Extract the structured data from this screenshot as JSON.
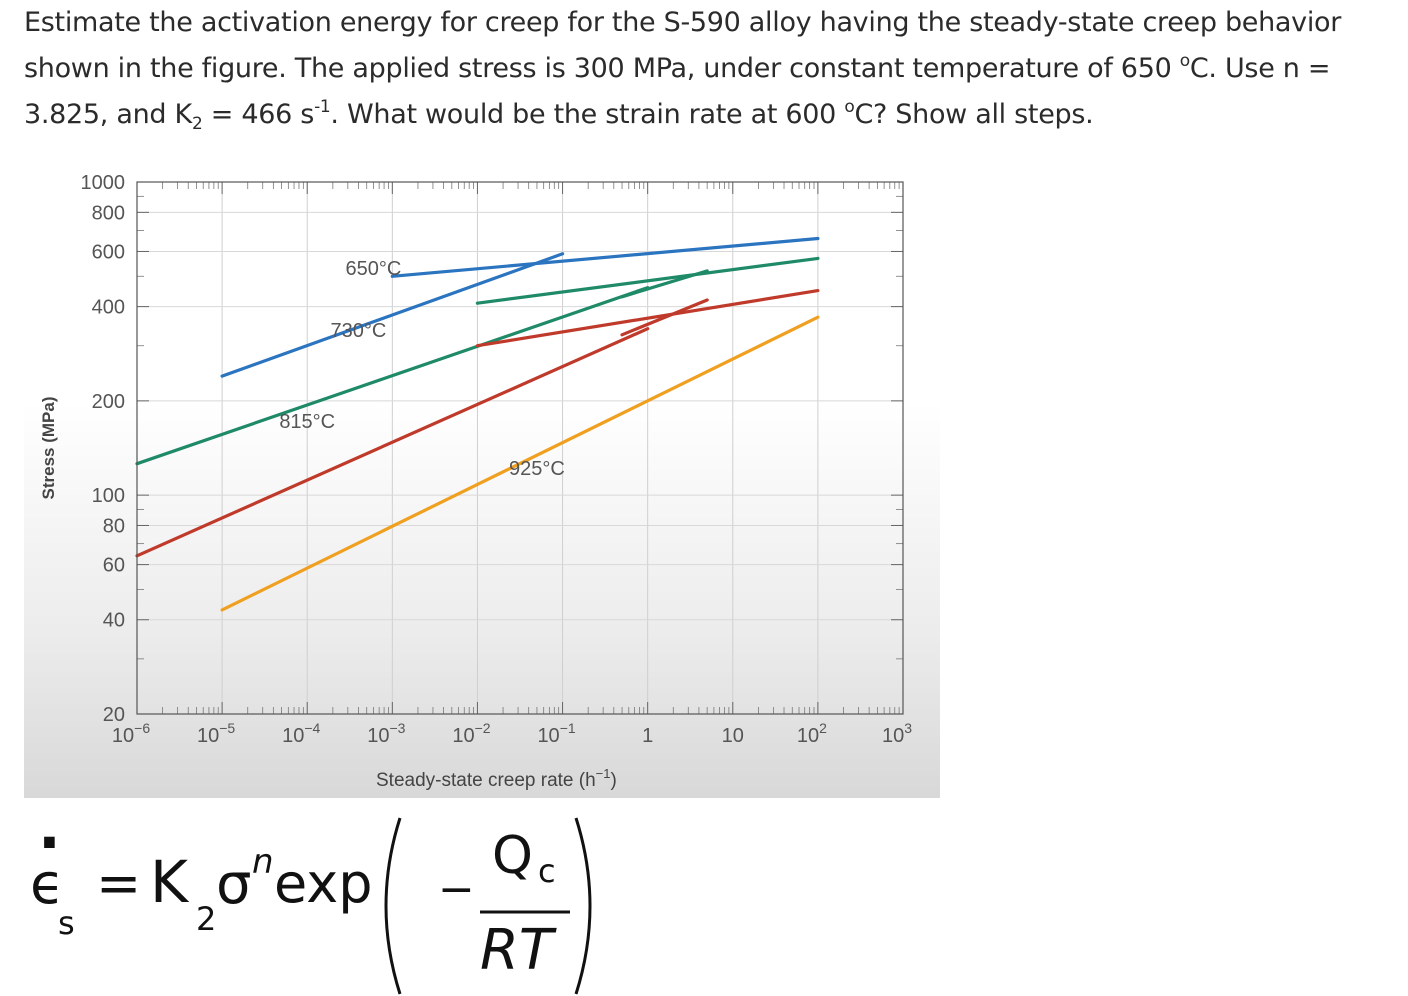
{
  "question": {
    "line1": "Estimate the activation energy for creep for the S-590 alloy having the steady-state creep behavior",
    "line2": "shown in the figure. The applied stress is 300 MPa, under constant temperature of 650 ",
    "deg1": "o",
    "line2b": "C. Use n =",
    "line3a": "3.825, and K",
    "k_sub": "2",
    "line3b": " = 466 s",
    "s_sup": "-1",
    "line3c": ". What would be the strain rate at 600 ",
    "deg2": "o",
    "line3d": "C? Show all steps."
  },
  "chart_data": {
    "type": "line",
    "xlabel": "Steady-state creep rate (h",
    "xlabel_sup": "−1",
    "xlabel_close": ")",
    "ylabel": "Stress (MPa)",
    "x_scale": "log",
    "y_scale": "log",
    "xlim": [
      1e-06,
      1000
    ],
    "ylim": [
      20,
      1000
    ],
    "x_ticks": [
      {
        "value": 1e-06,
        "base": "10",
        "exp": "−6"
      },
      {
        "value": 1e-05,
        "base": "10",
        "exp": "−5"
      },
      {
        "value": 0.0001,
        "base": "10",
        "exp": "−4"
      },
      {
        "value": 0.001,
        "base": "10",
        "exp": "−3"
      },
      {
        "value": 0.01,
        "base": "10",
        "exp": "−2"
      },
      {
        "value": 0.1,
        "base": "10",
        "exp": "−1"
      },
      {
        "value": 1,
        "base": "1",
        "exp": ""
      },
      {
        "value": 10,
        "base": "10",
        "exp": ""
      },
      {
        "value": 100,
        "base": "10",
        "exp": "2"
      },
      {
        "value": 1000,
        "base": "10",
        "exp": "3"
      }
    ],
    "y_ticks": [
      1000,
      800,
      600,
      400,
      200,
      100,
      80,
      60,
      40,
      20
    ],
    "grid": true,
    "series": [
      {
        "name": "650°C",
        "color": "#2a74c0",
        "x": [
          1e-05,
          0.1
        ],
        "y": [
          240,
          590
        ]
      },
      {
        "name": "650°C",
        "color": "#2a74c0",
        "x": [
          0.001,
          100
        ],
        "y": [
          500,
          660
        ]
      },
      {
        "name": "730°C",
        "color": "#1f8a68",
        "x": [
          1e-06,
          1
        ],
        "y": [
          126,
          460
        ]
      },
      {
        "name": "730°C",
        "color": "#1f8a68",
        "x": [
          0.01,
          100
        ],
        "y": [
          410,
          570
        ]
      },
      {
        "name": "730°C",
        "color": "#1f8a68",
        "x": [
          0.5,
          5
        ],
        "y": [
          430,
          520
        ]
      },
      {
        "name": "815°C",
        "color": "#c03a2b",
        "x": [
          1e-06,
          1
        ],
        "y": [
          64,
          340
        ]
      },
      {
        "name": "815°C",
        "color": "#c03a2b",
        "x": [
          0.01,
          100
        ],
        "y": [
          300,
          450
        ]
      },
      {
        "name": "815°C",
        "color": "#c03a2b",
        "x": [
          0.5,
          5
        ],
        "y": [
          325,
          420
        ]
      },
      {
        "name": "925°C",
        "color": "#f0a020",
        "x": [
          1e-05,
          100
        ],
        "y": [
          43,
          370
        ]
      }
    ],
    "annotations": [
      {
        "text": "650°C",
        "x": 0.0006,
        "y": 505
      },
      {
        "text": "730°C",
        "x": 0.0004,
        "y": 320
      },
      {
        "text": "815°C",
        "x": 0.0001,
        "y": 164
      },
      {
        "text": "925°C",
        "x": 0.05,
        "y": 116
      }
    ]
  },
  "equation": {
    "lhs": "ϵ",
    "lhs_dot": "·",
    "lhs_sub": "s",
    "eq": "=",
    "k": "K",
    "k_sub": "2",
    "sigma": "σ",
    "n_sup": "n",
    "exp": "exp",
    "minus": "−",
    "numerator": "Q",
    "num_sub": "c",
    "denominator": "RT"
  }
}
